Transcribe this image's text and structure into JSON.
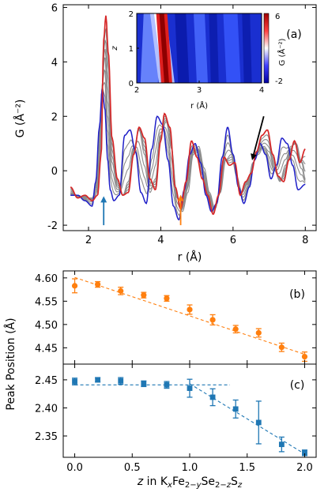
{
  "chart_data": [
    {
      "panel": "(a)",
      "type": "line",
      "xlabel": "r (Å)",
      "ylabel": "G (Å⁻²)",
      "xlim": [
        1.3,
        8.3
      ],
      "ylim": [
        -2.2,
        6.1
      ],
      "xticks": [
        2,
        4,
        6,
        8
      ],
      "yticks": [
        -2,
        0,
        2,
        4,
        6
      ],
      "colors": {
        "low_z": "#1f1fc8",
        "mid_z": "#8c8c8c",
        "high_z": "#d62728"
      },
      "curves": {
        "count": 9,
        "baseline_knots": {
          "r": [
            1.5,
            1.7,
            1.9,
            2.1,
            2.22,
            2.3,
            2.38,
            2.45,
            2.53,
            2.65,
            2.8,
            2.95,
            3.1,
            3.25,
            3.4,
            3.55,
            3.7,
            3.85,
            4.0,
            4.15,
            4.3,
            4.45,
            4.6,
            4.75,
            4.9,
            5.05,
            5.2,
            5.35,
            5.5,
            5.65,
            5.8,
            5.95,
            6.1,
            6.25,
            6.4,
            6.55,
            6.7,
            6.85,
            7.0,
            7.15,
            7.3,
            7.45,
            7.6,
            7.75,
            7.9,
            8.0
          ],
          "G": [
            -0.8,
            -0.9,
            -1.0,
            -1.0,
            -0.6,
            0.8,
            3.2,
            4.2,
            2.5,
            0.3,
            -0.6,
            -0.9,
            -0.4,
            0.8,
            1.5,
            0.6,
            -0.8,
            -0.3,
            1.3,
            1.8,
            0.8,
            -1.0,
            -1.5,
            -0.8,
            0.6,
            0.9,
            0.1,
            -0.8,
            -1.4,
            -0.8,
            0.4,
            0.6,
            -0.2,
            -0.8,
            -0.5,
            0.3,
            0.6,
            0.9,
            0.7,
            0.0,
            -0.4,
            0.2,
            0.9,
            1.0,
            0.3,
            -0.3
          ]
        },
        "blue_knots": {
          "r": [
            1.5,
            1.7,
            1.9,
            2.1,
            2.2,
            2.3,
            2.38,
            2.45,
            2.53,
            2.6,
            2.7,
            2.85,
            3.0,
            3.15,
            3.3,
            3.45,
            3.6,
            3.75,
            3.9,
            4.05,
            4.2,
            4.35,
            4.5,
            4.65,
            4.8,
            4.95,
            5.1,
            5.25,
            5.4,
            5.55,
            5.7,
            5.85,
            6.0,
            6.15,
            6.3,
            6.45,
            6.6,
            6.75,
            6.9,
            7.05,
            7.2,
            7.35,
            7.5,
            7.65,
            7.8,
            8.0
          ],
          "G": [
            -0.9,
            -0.9,
            -1.1,
            -1.3,
            -0.4,
            1.6,
            3.0,
            2.3,
            0.4,
            -0.7,
            -1.1,
            -0.9,
            1.3,
            1.5,
            0.7,
            -0.8,
            -1.2,
            0.8,
            2.0,
            1.7,
            0.4,
            -1.3,
            -1.8,
            -0.7,
            0.6,
            1.0,
            0.3,
            -0.9,
            -1.5,
            -1.2,
            0.5,
            1.6,
            0.6,
            -0.6,
            -1.2,
            -0.6,
            0.4,
            1.0,
            0.6,
            -0.3,
            0.2,
            1.2,
            1.0,
            0.2,
            -0.7,
            -0.5
          ]
        },
        "red_knots": {
          "r": [
            1.5,
            1.7,
            1.9,
            2.1,
            2.25,
            2.35,
            2.42,
            2.48,
            2.55,
            2.65,
            2.8,
            2.95,
            3.1,
            3.25,
            3.4,
            3.55,
            3.7,
            3.85,
            4.0,
            4.1,
            4.25,
            4.4,
            4.55,
            4.7,
            4.85,
            5.0,
            5.15,
            5.3,
            5.45,
            5.6,
            5.75,
            5.9,
            6.05,
            6.2,
            6.35,
            6.5,
            6.65,
            6.8,
            6.95,
            7.1,
            7.25,
            7.4,
            7.55,
            7.7,
            7.85,
            8.0
          ],
          "G": [
            -0.6,
            -1.0,
            -0.9,
            -1.1,
            -0.9,
            0.6,
            4.8,
            5.7,
            4.3,
            1.2,
            -0.3,
            -0.9,
            -0.8,
            0.6,
            1.6,
            1.2,
            -0.3,
            -0.7,
            1.1,
            2.1,
            1.6,
            -0.6,
            -1.4,
            -0.4,
            1.1,
            0.5,
            -0.3,
            -0.9,
            -1.6,
            -0.9,
            0.5,
            0.2,
            0.3,
            -0.9,
            -0.4,
            -0.1,
            0.7,
            1.3,
            1.5,
            0.6,
            -0.2,
            -0.4,
            0.4,
            1.1,
            0.3,
            0.8
          ]
        }
      },
      "arrows": [
        {
          "color": "#1f77b4",
          "x": 2.42,
          "y_from": -2.0,
          "y_to": -1.05,
          "direction": "up"
        },
        {
          "color": "#ff7f0e",
          "x": 4.55,
          "y_from": -2.0,
          "y_to": -1.0,
          "direction": "up"
        },
        {
          "color": "#000000",
          "x_from": 6.85,
          "y_from": 2.0,
          "x_to": 6.55,
          "y_to": 0.5,
          "direction": "down-left"
        }
      ]
    },
    {
      "panel": "(a) inset",
      "type": "heatmap",
      "xlabel": "r (Å)",
      "ylabel": "z",
      "xlim": [
        2,
        4
      ],
      "ylim": [
        0,
        2
      ],
      "xticks": [
        2,
        3,
        4
      ],
      "yticks": [
        0,
        1,
        2
      ],
      "colorbar": {
        "label": "G (Å⁻²)",
        "min": -2,
        "max": 6,
        "ticks": [
          6,
          -2
        ],
        "map": "seismic"
      }
    },
    {
      "panel": "(b)",
      "type": "scatter",
      "color": "#ff7f0e",
      "x": [
        0.0,
        0.2,
        0.4,
        0.6,
        0.8,
        1.0,
        1.2,
        1.4,
        1.6,
        1.8,
        2.0
      ],
      "y": [
        4.583,
        4.586,
        4.572,
        4.563,
        4.556,
        4.532,
        4.51,
        4.49,
        4.482,
        4.451,
        4.431
      ],
      "err": [
        0.015,
        0.006,
        0.008,
        0.006,
        0.006,
        0.01,
        0.011,
        0.008,
        0.009,
        0.009,
        0.01
      ],
      "fit_line": {
        "x": [
          0.0,
          2.0
        ],
        "y": [
          4.601,
          4.436
        ]
      },
      "ylim": [
        4.415,
        4.615
      ],
      "yticks": [
        4.45,
        4.5,
        4.55,
        4.6
      ]
    },
    {
      "panel": "(c)",
      "type": "scatter",
      "color": "#1f77b4",
      "x": [
        0.0,
        0.2,
        0.4,
        0.6,
        0.8,
        1.0,
        1.2,
        1.4,
        1.6,
        1.8,
        2.0
      ],
      "y": [
        2.447,
        2.45,
        2.448,
        2.443,
        2.441,
        2.435,
        2.419,
        2.398,
        2.374,
        2.335,
        2.32
      ],
      "err": [
        0.006,
        0.004,
        0.006,
        0.005,
        0.006,
        0.016,
        0.015,
        0.016,
        0.038,
        0.013,
        0.005
      ],
      "fit_lines": [
        {
          "x": [
            0.0,
            1.35
          ],
          "y": [
            2.441,
            2.441
          ]
        },
        {
          "x": [
            1.0,
            2.0
          ],
          "y": [
            2.443,
            2.318
          ]
        }
      ],
      "ylim": [
        2.312,
        2.478
      ],
      "yticks": [
        2.35,
        2.4,
        2.45
      ],
      "xlim": [
        -0.1,
        2.1
      ],
      "xticks": [
        0.0,
        0.5,
        1.0,
        1.5,
        2.0
      ]
    }
  ],
  "labels": {
    "panel_a": "(a)",
    "panel_b": "(b)",
    "panel_c": "(c)",
    "a_xlabel": "r (Å)",
    "a_ylabel": "G (Å⁻²)",
    "shared_ylabel": "Peak Position (Å)",
    "inset_xlabel": "r (Å)",
    "inset_ylabel": "z",
    "cbar_label": "G (Å⁻²)",
    "cbar_top": "6",
    "cbar_bottom": "-2",
    "x_axis_label": "z in KxFe2−ySe2−zSz"
  }
}
